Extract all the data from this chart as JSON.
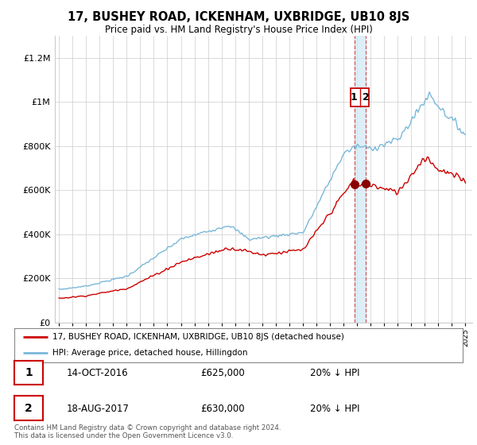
{
  "title": "17, BUSHEY ROAD, ICKENHAM, UXBRIDGE, UB10 8JS",
  "subtitle": "Price paid vs. HM Land Registry's House Price Index (HPI)",
  "ylim": [
    0,
    1300000
  ],
  "yticks": [
    0,
    200000,
    400000,
    600000,
    800000,
    1000000,
    1200000
  ],
  "ytick_labels": [
    "£0",
    "£200K",
    "£400K",
    "£600K",
    "£800K",
    "£1M",
    "£1.2M"
  ],
  "background_color": "#ffffff",
  "grid_color": "#cccccc",
  "hpi_color": "#7ab8d9",
  "price_color": "#cc0000",
  "transaction1": {
    "date": "14-OCT-2016",
    "price": 625000,
    "label": "20% ↓ HPI",
    "num": "1",
    "year": 2016.79
  },
  "transaction2": {
    "date": "18-AUG-2017",
    "price": 630000,
    "label": "20% ↓ HPI",
    "num": "2",
    "year": 2017.63
  },
  "legend_line1": "17, BUSHEY ROAD, ICKENHAM, UXBRIDGE, UB10 8JS (detached house)",
  "legend_line2": "HPI: Average price, detached house, Hillingdon",
  "footer": "Contains HM Land Registry data © Crown copyright and database right 2024.\nThis data is licensed under the Open Government Licence v3.0.",
  "x_start_year": 1995,
  "x_end_year": 2025
}
